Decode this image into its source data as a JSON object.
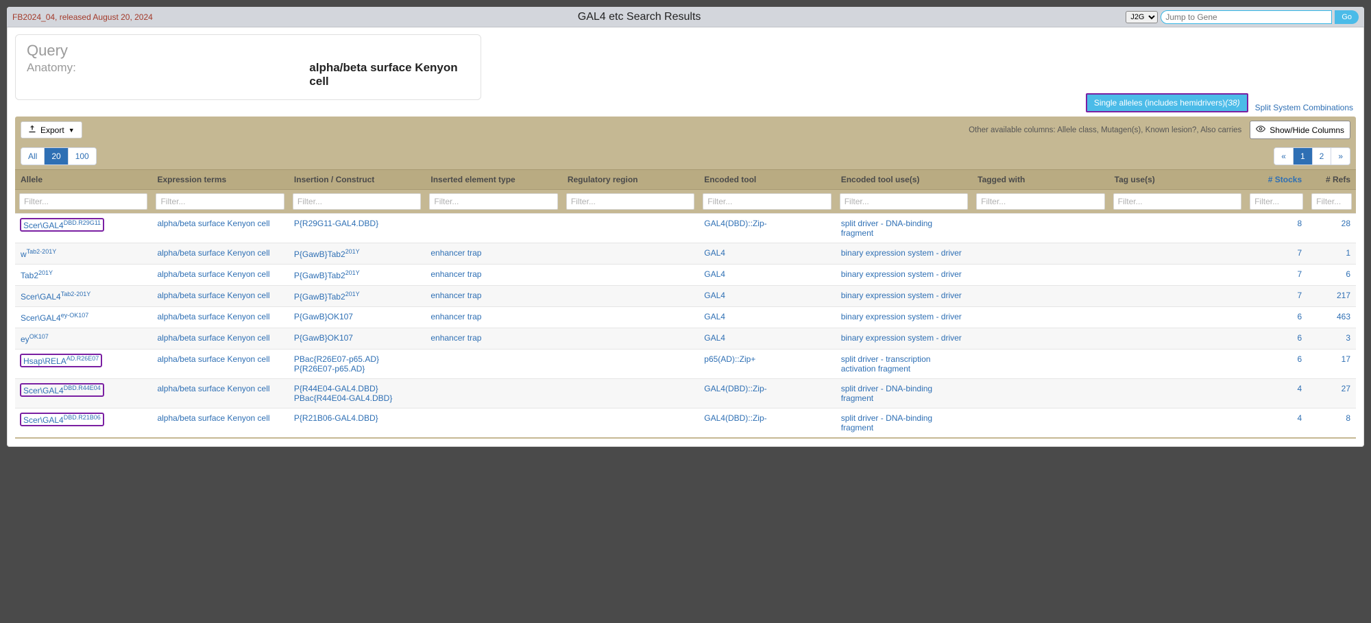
{
  "colors": {
    "page_bg": "#4a4a4a",
    "card_bg": "#ffffff",
    "topbar_bg": "#d3d6dc",
    "khaki": "#c5b893",
    "khaki_dark": "#b9ab82",
    "link": "#2e6fb4",
    "accent_cyan": "#4bbbe8",
    "highlight_border": "#7a1fa2",
    "release_text": "#a33a2a"
  },
  "topbar": {
    "release": "FB2024_04, released August 20, 2024",
    "title": "GAL4 etc Search Results",
    "j2g_selected": "J2G",
    "jump_placeholder": "Jump to Gene",
    "go_label": "Go"
  },
  "query": {
    "heading": "Query",
    "label": "Anatomy:",
    "value": "alpha/beta surface Kenyon cell"
  },
  "tabs": {
    "active_label": "Single alleles (includes hemidrivers)",
    "active_count": "(38)",
    "other_label": "Split System Combinations"
  },
  "toolbar": {
    "export_label": "Export",
    "other_cols_prefix": "Other available columns:",
    "other_cols_list": "Allele class, Mutagen(s), Known lesion?, Also carries",
    "showhide_label": "Show/Hide Columns"
  },
  "paging": {
    "sizes": [
      "All",
      "20",
      "100"
    ],
    "size_active_index": 1,
    "pages": [
      "«",
      "1",
      "2",
      "»"
    ],
    "page_active_index": 1
  },
  "filter_placeholder": "Filter...",
  "columns": [
    "Allele",
    "Expression terms",
    "Insertion / Construct",
    "Inserted element type",
    "Regulatory region",
    "Encoded tool",
    "Encoded tool use(s)",
    "Tagged with",
    "Tag use(s)",
    "# Stocks",
    "# Refs"
  ],
  "rows": [
    {
      "allele_main": "Scer\\GAL4",
      "allele_sup": "DBD.R29G11",
      "highlight": true,
      "expr": "alpha/beta surface Kenyon cell",
      "insert": "P{R29G11-GAL4.DBD}",
      "elem": "",
      "reg": "",
      "tool": "GAL4(DBD)::Zip-",
      "uses": "split driver - DNA-binding fragment",
      "tagged": "",
      "taguse": "",
      "stocks": "8",
      "refs": "28"
    },
    {
      "allele_main": "w",
      "allele_sup": "Tab2-201Y",
      "highlight": false,
      "expr": "alpha/beta surface Kenyon cell",
      "insert": "P{GawB}Tab2",
      "insert_sup": "201Y",
      "elem": "enhancer trap",
      "reg": "",
      "tool": "GAL4",
      "uses": "binary expression system - driver",
      "tagged": "",
      "taguse": "",
      "stocks": "7",
      "refs": "1"
    },
    {
      "allele_main": "Tab2",
      "allele_sup": "201Y",
      "highlight": false,
      "expr": "alpha/beta surface Kenyon cell",
      "insert": "P{GawB}Tab2",
      "insert_sup": "201Y",
      "elem": "enhancer trap",
      "reg": "",
      "tool": "GAL4",
      "uses": "binary expression system - driver",
      "tagged": "",
      "taguse": "",
      "stocks": "7",
      "refs": "6"
    },
    {
      "allele_main": "Scer\\GAL4",
      "allele_sup": "Tab2-201Y",
      "highlight": false,
      "expr": "alpha/beta surface Kenyon cell",
      "insert": "P{GawB}Tab2",
      "insert_sup": "201Y",
      "elem": "enhancer trap",
      "reg": "",
      "tool": "GAL4",
      "uses": "binary expression system - driver",
      "tagged": "",
      "taguse": "",
      "stocks": "7",
      "refs": "217"
    },
    {
      "allele_main": "Scer\\GAL4",
      "allele_sup": "ey-OK107",
      "highlight": false,
      "expr": "alpha/beta surface Kenyon cell",
      "insert": "P{GawB}OK107",
      "elem": "enhancer trap",
      "reg": "",
      "tool": "GAL4",
      "uses": "binary expression system - driver",
      "tagged": "",
      "taguse": "",
      "stocks": "6",
      "refs": "463"
    },
    {
      "allele_main": "ey",
      "allele_sup": "OK107",
      "highlight": false,
      "expr": "alpha/beta surface Kenyon cell",
      "insert": "P{GawB}OK107",
      "elem": "enhancer trap",
      "reg": "",
      "tool": "GAL4",
      "uses": "binary expression system - driver",
      "tagged": "",
      "taguse": "",
      "stocks": "6",
      "refs": "3"
    },
    {
      "allele_main": "Hsap\\RELA",
      "allele_sup": "AD.R26E07",
      "highlight": true,
      "expr": "alpha/beta surface Kenyon cell",
      "insert": "PBac{R26E07-p65.AD}\nP{R26E07-p65.AD}",
      "elem": "",
      "reg": "",
      "tool": "p65(AD)::Zip+",
      "uses": "split driver - transcription activation fragment",
      "tagged": "",
      "taguse": "",
      "stocks": "6",
      "refs": "17"
    },
    {
      "allele_main": "Scer\\GAL4",
      "allele_sup": "DBD.R44E04",
      "highlight": true,
      "expr": "alpha/beta surface Kenyon cell",
      "insert": "P{R44E04-GAL4.DBD}\nPBac{R44E04-GAL4.DBD}",
      "elem": "",
      "reg": "",
      "tool": "GAL4(DBD)::Zip-",
      "uses": "split driver - DNA-binding fragment",
      "tagged": "",
      "taguse": "",
      "stocks": "4",
      "refs": "27"
    },
    {
      "allele_main": "Scer\\GAL4",
      "allele_sup": "DBD.R21B06",
      "highlight": true,
      "expr": "alpha/beta surface Kenyon cell",
      "insert": "P{R21B06-GAL4.DBD}",
      "elem": "",
      "reg": "",
      "tool": "GAL4(DBD)::Zip-",
      "uses": "split driver - DNA-binding fragment",
      "tagged": "",
      "taguse": "",
      "stocks": "4",
      "refs": "8"
    }
  ]
}
